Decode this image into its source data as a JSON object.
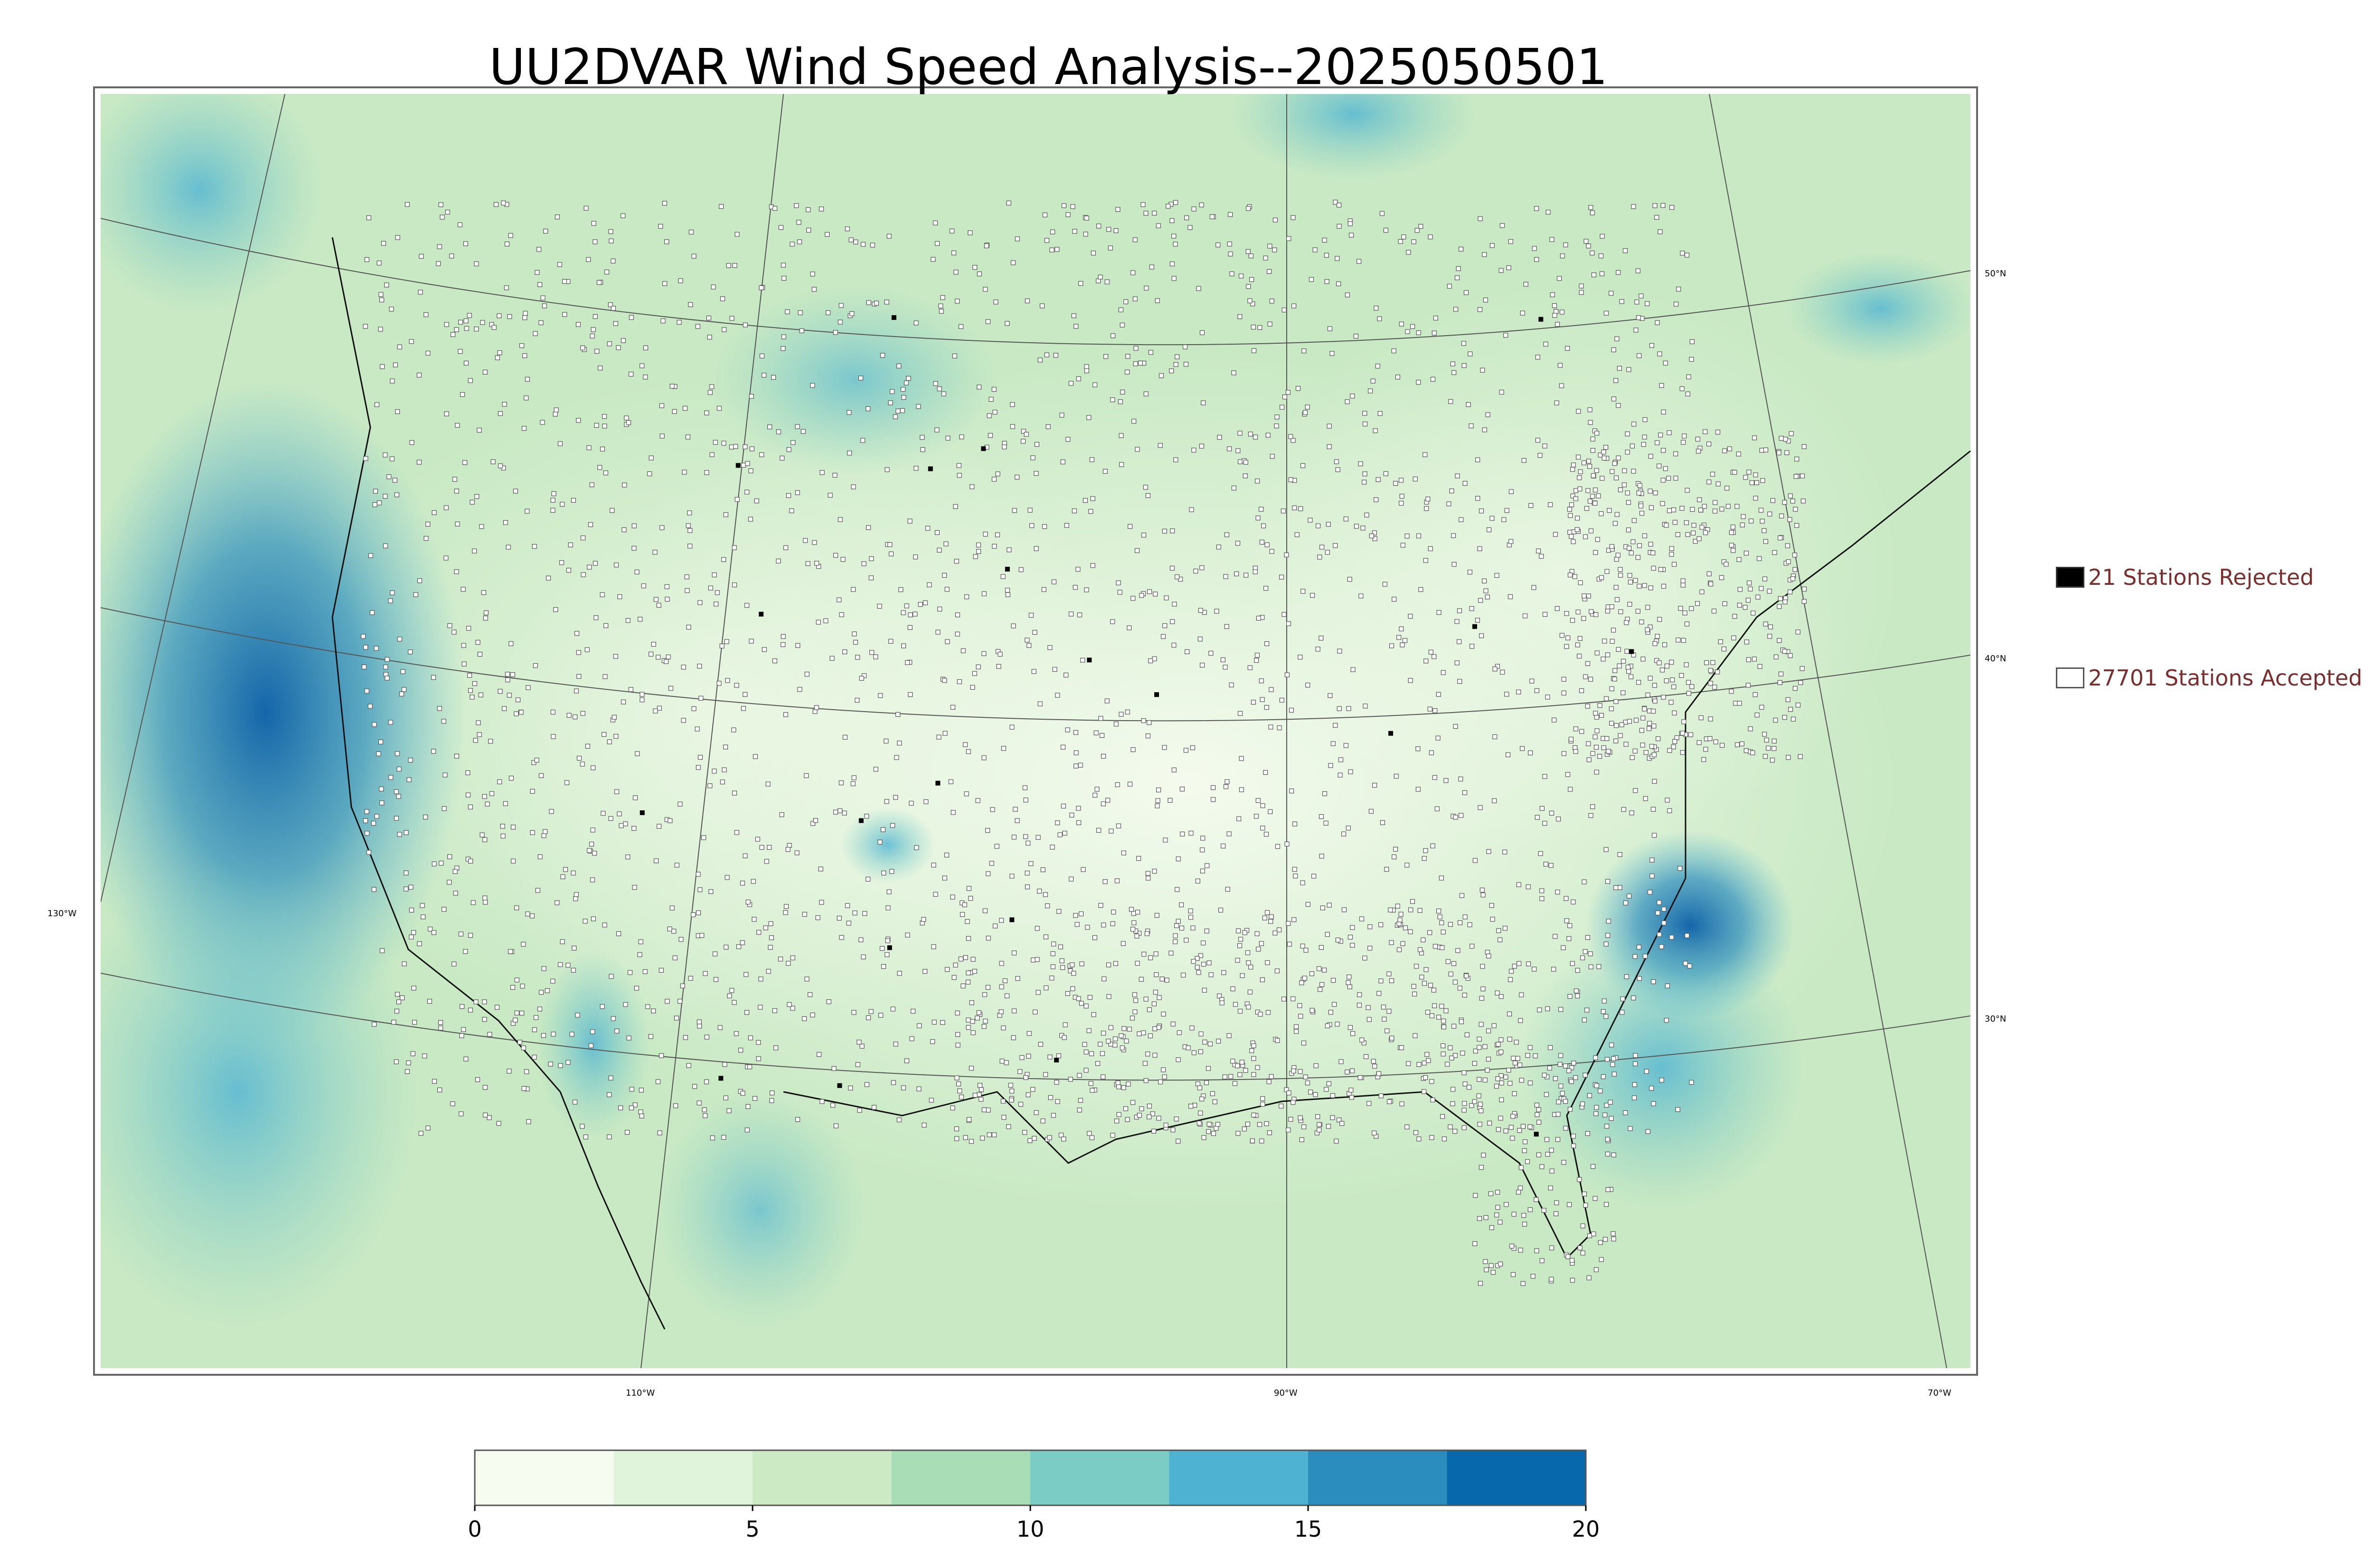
{
  "title": "UU2DVAR Wind Speed Analysis--2025050501",
  "legend": {
    "rejected": {
      "label": "21 Stations Rejected",
      "swatch_color": "#000000"
    },
    "accepted": {
      "label": "27701 Stations Accepted",
      "swatch_color": "#ffffff"
    }
  },
  "latitude_labels": [
    "50°N",
    "40°N",
    "30°N"
  ],
  "longitude_labels": [
    "130°W",
    "110°W",
    "90°W",
    "70°W"
  ],
  "colorbar": {
    "ticks": [
      "0",
      "5",
      "10",
      "15",
      "20"
    ],
    "min": 0,
    "max": 20,
    "colors": [
      "#f7fcf0",
      "#e0f3db",
      "#ccebc5",
      "#a8ddb5",
      "#7bccc4",
      "#4eb3d3",
      "#2b8cbe",
      "#0868ac"
    ]
  },
  "icons": [
    "filled-square-icon",
    "open-square-icon"
  ]
}
